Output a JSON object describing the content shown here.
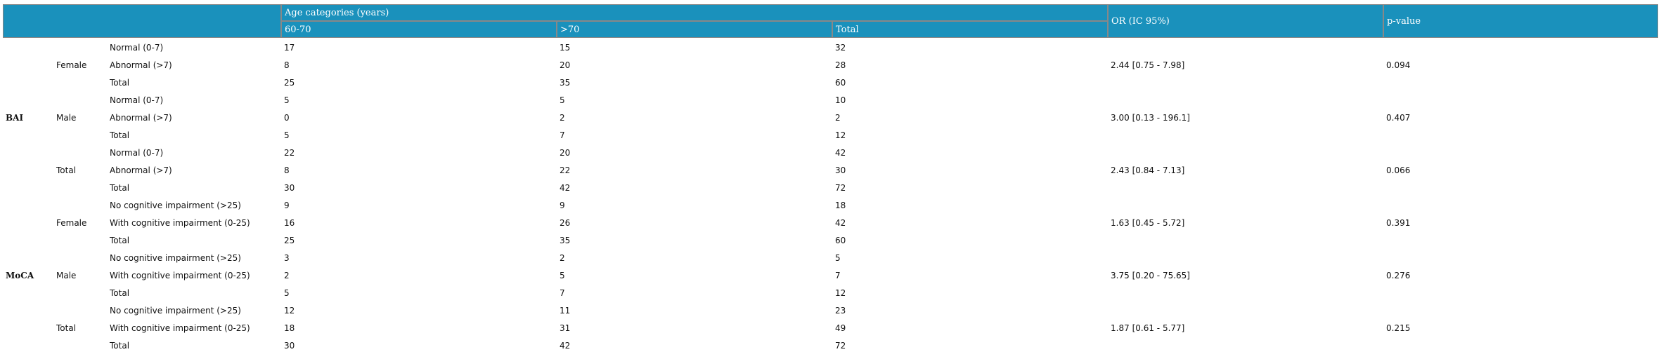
{
  "header": {
    "age_group": "Age categories (years)",
    "col_60_70": "60-70",
    "col_gt70": ">70",
    "col_total": "Total",
    "or": "OR (IC 95%)",
    "p": "p-value"
  },
  "colors": {
    "header_bg": "#1a91bc"
  },
  "scales": [
    {
      "name": "BAI",
      "groups": [
        {
          "name": "Female",
          "or": "2.44 [0.75 - 7.98]",
          "p": "0.094",
          "rows": [
            [
              "Normal (0-7)",
              "17",
              "15",
              "32"
            ],
            [
              "Abnormal (>7)",
              "8",
              "20",
              "28"
            ],
            [
              "Total",
              "25",
              "35",
              "60"
            ]
          ]
        },
        {
          "name": "Male",
          "or": "3.00 [0.13 - 196.1]",
          "p": "0.407",
          "rows": [
            [
              "Normal (0-7)",
              "5",
              "5",
              "10"
            ],
            [
              "Abnormal (>7)",
              "0",
              "2",
              "2"
            ],
            [
              "Total",
              "5",
              "7",
              "12"
            ]
          ]
        },
        {
          "name": "Total",
          "or": "2.43 [0.84 - 7.13]",
          "p": "0.066",
          "rows": [
            [
              "Normal (0-7)",
              "22",
              "20",
              "42"
            ],
            [
              "Abnormal (>7)",
              "8",
              "22",
              "30"
            ],
            [
              "Total",
              "30",
              "42",
              "72"
            ]
          ]
        }
      ]
    },
    {
      "name": "MoCA",
      "groups": [
        {
          "name": "Female",
          "or": "1.63 [0.45 - 5.72]",
          "p": "0.391",
          "rows": [
            [
              "No cognitive impairment (>25)",
              "9",
              "9",
              "18"
            ],
            [
              "With cognitive impairment (0-25)",
              "16",
              "26",
              "42"
            ],
            [
              "Total",
              "25",
              "35",
              "60"
            ]
          ]
        },
        {
          "name": "Male",
          "or": "3.75 [0.20 - 75.65]",
          "p": "0.276",
          "rows": [
            [
              "No cognitive impairment (>25)",
              "3",
              "2",
              "5"
            ],
            [
              "With cognitive impairment (0-25)",
              "2",
              "5",
              "7"
            ],
            [
              "Total",
              "5",
              "7",
              "12"
            ]
          ]
        },
        {
          "name": "Total",
          "or": "1.87 [0.61 - 5.77]",
          "p": "0.215",
          "rows": [
            [
              "No cognitive impairment (>25)",
              "12",
              "11",
              "23"
            ],
            [
              "With cognitive impairment (0-25)",
              "18",
              "31",
              "49"
            ],
            [
              "Total",
              "30",
              "42",
              "72"
            ]
          ]
        }
      ]
    }
  ]
}
